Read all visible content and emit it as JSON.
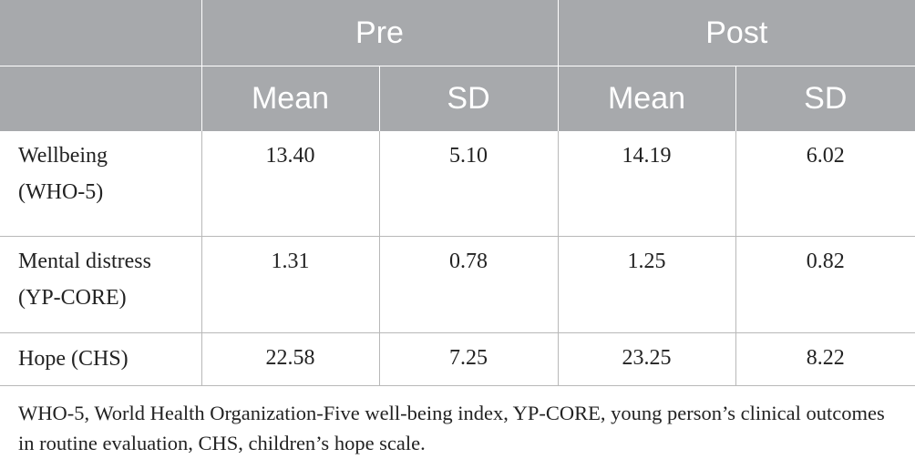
{
  "table": {
    "group_headers": [
      "Pre",
      "Post"
    ],
    "sub_headers": [
      "Mean",
      "SD",
      "Mean",
      "SD"
    ],
    "rows": [
      {
        "label_line1": "Wellbeing",
        "label_line2": "(WHO-5)",
        "values": [
          "13.40",
          "5.10",
          "14.19",
          "6.02"
        ]
      },
      {
        "label_line1": "Mental distress",
        "label_line2": "(YP-CORE)",
        "values": [
          "1.31",
          "0.78",
          "1.25",
          "0.82"
        ]
      },
      {
        "label_line1": "Hope (CHS)",
        "label_line2": "",
        "values": [
          "22.58",
          "7.25",
          "23.25",
          "8.22"
        ]
      }
    ]
  },
  "footnote": "WHO-5, World Health Organization-Five well-being index, YP-CORE, young person’s clinical outcomes in routine evaluation, CHS, children’s hope scale.",
  "colors": {
    "header_bg": "#a7a9ac",
    "header_text": "#ffffff",
    "rule": "#b8b8b8",
    "body_text": "#222222"
  }
}
